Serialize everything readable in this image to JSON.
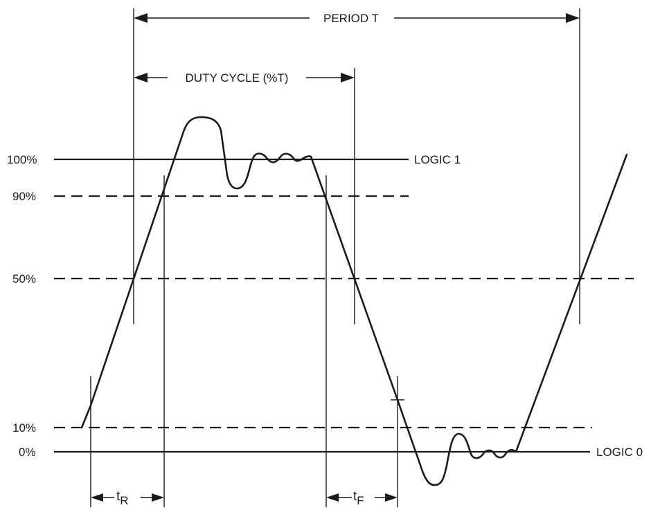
{
  "levels": {
    "l100": "100%",
    "l90": "90%",
    "l50": "50%",
    "l10": "10%",
    "l0": "0%"
  },
  "logic1": "LOGIC 1",
  "logic0": "LOGIC  0",
  "period": "PERIOD  T",
  "duty": "DUTY CYCLE (%T)",
  "tr": {
    "main": "t",
    "sub": "R"
  },
  "tf": {
    "main": "t",
    "sub": "F"
  }
}
